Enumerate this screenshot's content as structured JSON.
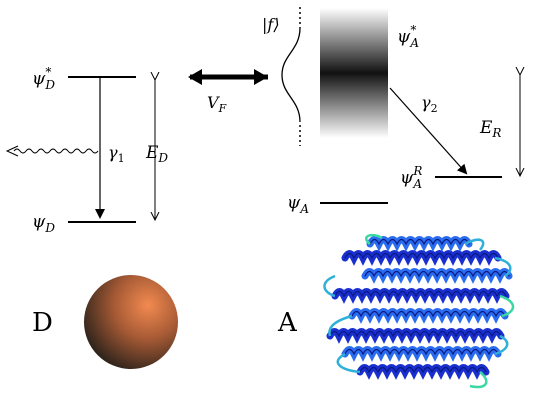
{
  "donor": {
    "excited_state": "ψ",
    "excited_sup": "*",
    "excited_sub": "D",
    "ground_state": "ψ",
    "ground_sub": "D",
    "decay_rate": "γ",
    "decay_sub": "1",
    "gap": "E",
    "gap_sub": "D",
    "label": "D",
    "sphere_color": "#e07a45"
  },
  "coupling": {
    "label": "V",
    "label_sub": "F"
  },
  "acceptor": {
    "continuum_label": "|f⟩",
    "excited_state": "ψ",
    "excited_sup": "*",
    "excited_sub": "A",
    "relaxed_state": "ψ",
    "relaxed_sup": "R",
    "relaxed_sub": "A",
    "ground_state": "ψ",
    "ground_sub": "A",
    "relax_rate": "γ",
    "relax_sub": "2",
    "gap": "E",
    "gap_sub": "R",
    "label": "A",
    "protein_colors": [
      "#1a2fd0",
      "#2a6cf0",
      "#2fb0d8",
      "#3bd8a0"
    ]
  }
}
